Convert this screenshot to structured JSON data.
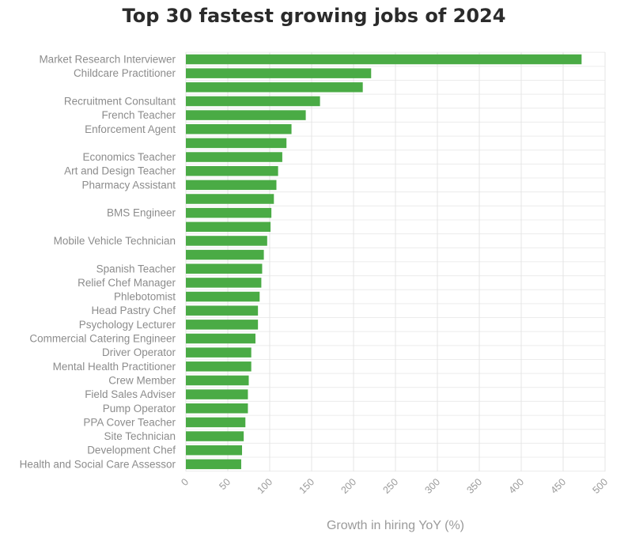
{
  "chart_data": {
    "type": "bar",
    "orientation": "horizontal",
    "title": "Top 30 fastest growing jobs of 2024",
    "xlabel": "Growth in hiring YoY (%)",
    "ylabel": "",
    "xlim": [
      0,
      500
    ],
    "xticks": [
      "0",
      "50",
      "100",
      "150",
      "200",
      "250",
      "300",
      "350",
      "400",
      "450",
      "500"
    ],
    "grid": true,
    "bar_color": "#4aab45",
    "categories": [
      "Market Research Interviewer",
      "Childcare Practitioner",
      "",
      "Recruitment Consultant",
      "French Teacher",
      "Enforcement Agent",
      "",
      "Economics Teacher",
      "Art and Design Teacher",
      "Pharmacy Assistant",
      "",
      "BMS Engineer",
      "",
      "Mobile Vehicle Technician",
      "",
      "Spanish Teacher",
      "Relief Chef Manager",
      "Phlebotomist",
      "Head Pastry Chef",
      "Psychology Lecturer",
      "Commercial Catering Engineer",
      "Driver Operator",
      "Mental Health Practitioner",
      "Crew Member",
      "Field Sales Adviser",
      "Pump Operator",
      "PPA Cover Teacher",
      "Site Technician",
      "Development Chef",
      "Health and Social Care Assessor"
    ],
    "values": [
      472,
      221,
      211,
      160,
      143,
      126,
      120,
      115,
      110,
      108,
      105,
      102,
      101,
      97,
      93,
      91,
      90,
      88,
      86,
      86,
      83,
      78,
      78,
      75,
      74,
      74,
      71,
      69,
      67,
      66
    ]
  }
}
